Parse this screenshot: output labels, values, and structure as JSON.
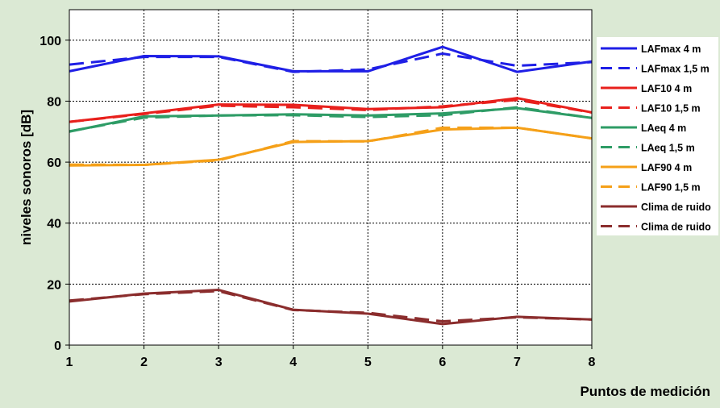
{
  "chart_data": {
    "type": "line",
    "title": "",
    "xlabel": "Puntos de medición",
    "ylabel": "niveles sonoros [dB]",
    "x": [
      1,
      2,
      3,
      4,
      5,
      6,
      7,
      8
    ],
    "xlim": [
      1,
      8
    ],
    "ylim": [
      0,
      110
    ],
    "yticks": [
      0,
      20,
      40,
      60,
      80,
      100
    ],
    "grid": true,
    "legend_position": "right",
    "series": [
      {
        "name": "LAFmax 4 m",
        "color": "#1f1fe6",
        "dash": "solid",
        "values": [
          89.8,
          94.8,
          94.7,
          89.8,
          89.8,
          97.8,
          89.6,
          93.0
        ]
      },
      {
        "name": "LAFmax 1,5 m",
        "color": "#1f1fe6",
        "dash": "dashed",
        "values": [
          92.0,
          94.5,
          94.5,
          89.6,
          90.4,
          95.6,
          91.6,
          92.8
        ]
      },
      {
        "name": "LAF10 4 m",
        "color": "#e8201c",
        "dash": "solid",
        "values": [
          73.2,
          76.0,
          78.9,
          78.8,
          77.4,
          78.0,
          81.0,
          76.3
        ]
      },
      {
        "name": "LAF10 1,5 m",
        "color": "#e8201c",
        "dash": "dashed",
        "values": [
          73.2,
          75.8,
          78.5,
          78.0,
          77.1,
          78.3,
          80.4,
          76.3
        ]
      },
      {
        "name": "LAeq 4 m",
        "color": "#2e9c66",
        "dash": "solid",
        "values": [
          70.0,
          75.0,
          75.3,
          75.7,
          75.3,
          76.0,
          77.7,
          74.5
        ]
      },
      {
        "name": "LAeq 1,5 m",
        "color": "#2e9c66",
        "dash": "dashed",
        "values": [
          70.1,
          74.6,
          75.3,
          75.4,
          74.8,
          75.4,
          78.0,
          74.5
        ]
      },
      {
        "name": "LAF90 4 m",
        "color": "#f5a018",
        "dash": "solid",
        "values": [
          58.9,
          59.1,
          60.8,
          66.6,
          66.9,
          70.7,
          71.3,
          67.8
        ]
      },
      {
        "name": "LAF90 1,5 m",
        "color": "#f5a018",
        "dash": "dashed",
        "values": [
          59.2,
          59.1,
          60.6,
          66.9,
          66.8,
          71.3,
          71.3,
          67.8
        ]
      },
      {
        "name": "Clima de ruido",
        "color": "#8b2d2d",
        "dash": "solid",
        "values": [
          14.3,
          16.9,
          18.1,
          11.6,
          10.3,
          6.9,
          9.3,
          8.4
        ]
      },
      {
        "name": "Clima de ruido",
        "color": "#8b2d2d",
        "dash": "dashed",
        "values": [
          14.6,
          16.7,
          17.7,
          11.5,
          10.6,
          7.8,
          9.1,
          8.4
        ]
      }
    ]
  }
}
